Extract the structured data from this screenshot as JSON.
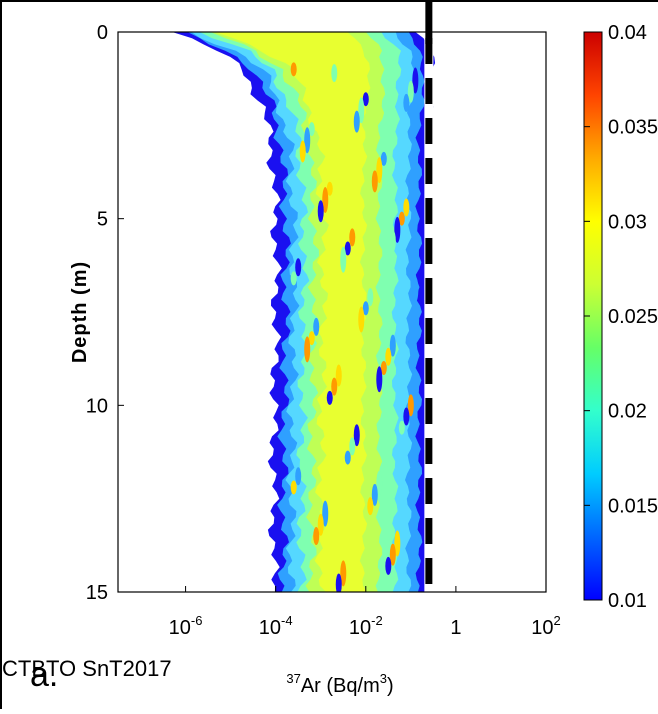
{
  "chart_data": {
    "type": "heatmap",
    "title": "",
    "xlabel": {
      "sup": "37",
      "text": "Ar (Bq/m",
      "unit_sup": "3",
      "close": ")"
    },
    "ylabel": "Depth (m)",
    "x_scale": "log",
    "x_range_log10": [
      -7.5,
      2
    ],
    "x_ticks": [
      {
        "exp": -6,
        "label": "10",
        "sup": "-6"
      },
      {
        "exp": -4,
        "label": "10",
        "sup": "-4"
      },
      {
        "exp": -2,
        "label": "10",
        "sup": "-2"
      },
      {
        "exp": 0,
        "label": "1",
        "sup": ""
      },
      {
        "exp": 2,
        "label": "10",
        "sup": "2"
      }
    ],
    "y_range": [
      0,
      15
    ],
    "y_inverted": true,
    "y_ticks": [
      {
        "value": 0,
        "label": "0"
      },
      {
        "value": 5,
        "label": "5"
      },
      {
        "value": 10,
        "label": "10"
      },
      {
        "value": 15,
        "label": "15"
      }
    ],
    "colorbar": {
      "range": [
        0.01,
        0.04
      ],
      "ticks": [
        {
          "value": 0.04,
          "label": "0.04"
        },
        {
          "value": 0.035,
          "label": "0.035"
        },
        {
          "value": 0.03,
          "label": "0.03"
        },
        {
          "value": 0.025,
          "label": "0.025"
        },
        {
          "value": 0.02,
          "label": "0.02"
        },
        {
          "value": 0.015,
          "label": "0.015"
        },
        {
          "value": 0.01,
          "label": "0.01"
        }
      ],
      "colormap": [
        "#0000ff",
        "#0066ff",
        "#00ccff",
        "#33ffcc",
        "#66ff66",
        "#ccff33",
        "#ffff00",
        "#ffaa00",
        "#ff4400",
        "#cc0000"
      ]
    },
    "threshold_line": {
      "x_log10": -0.6,
      "style": "dashed",
      "color": "#000000"
    },
    "distribution_profile": [
      {
        "depth": 0.0,
        "left_log10": -6.3,
        "right_log10": -0.9
      },
      {
        "depth": 0.5,
        "left_log10": -5.3,
        "right_log10": -0.55
      },
      {
        "depth": 1.0,
        "left_log10": -4.7,
        "right_log10": -0.5
      },
      {
        "depth": 2.0,
        "left_log10": -4.3,
        "right_log10": -0.55
      },
      {
        "depth": 3.0,
        "left_log10": -4.1,
        "right_log10": -0.6
      },
      {
        "depth": 5.0,
        "left_log10": -4.0,
        "right_log10": -0.6
      },
      {
        "depth": 8.0,
        "left_log10": -4.0,
        "right_log10": -0.6
      },
      {
        "depth": 11.0,
        "left_log10": -4.05,
        "right_log10": -0.6
      },
      {
        "depth": 14.0,
        "left_log10": -4.05,
        "right_log10": -0.6
      },
      {
        "depth": 15.0,
        "left_log10": -4.05,
        "right_log10": -0.6
      }
    ]
  },
  "panel_label": "a.",
  "watermark": "CTBTO SnT2017"
}
